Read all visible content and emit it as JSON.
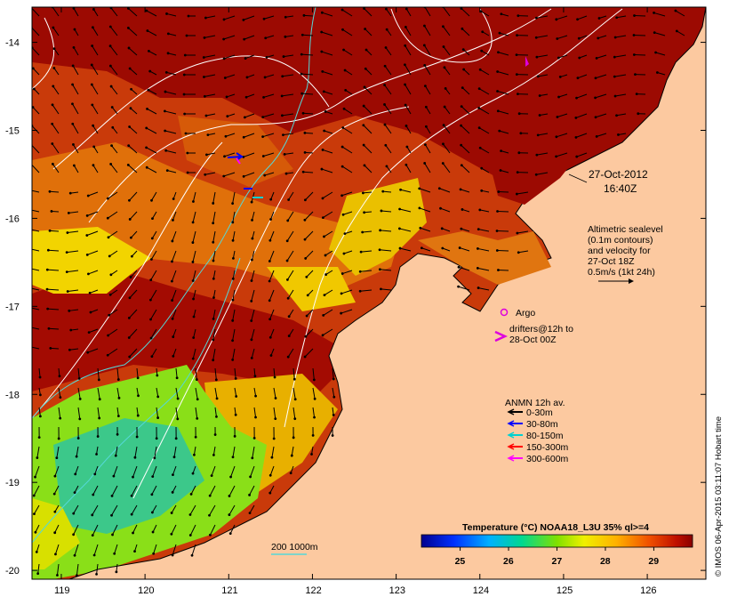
{
  "map": {
    "lat_ticks": [
      "-14",
      "-15",
      "-16",
      "-17",
      "-18",
      "-19",
      "-20"
    ],
    "lon_ticks": [
      "119",
      "120",
      "121",
      "122",
      "123",
      "124",
      "125",
      "126"
    ],
    "lat_range": [
      -20.1,
      -13.6
    ],
    "lon_range": [
      118.65,
      126.7
    ]
  },
  "annotations": {
    "date_line1": "27-Oct-2012",
    "date_line2": "16:40Z",
    "altimetry": [
      "Altimetric sealevel",
      "(0.1m contours)",
      "and velocity for",
      "27-Oct 18Z",
      "0.5m/s (1kt 24h)"
    ],
    "argo_label": "Argo",
    "drifters": [
      "drifters@12h to",
      "28-Oct 00Z"
    ],
    "isobath_label": "200  1000m",
    "credit": "© IMOS 06-Apr-2015 03:11:07 Hobart time"
  },
  "legend": {
    "title": "ANMN 12h av.",
    "items": [
      {
        "label": "0-30m",
        "color": "#000000"
      },
      {
        "label": "30-80m",
        "color": "#0000ff"
      },
      {
        "label": "80-150m",
        "color": "#00d0d0"
      },
      {
        "label": "150-300m",
        "color": "#ff0000"
      },
      {
        "label": "300-600m",
        "color": "#ff00ff"
      }
    ]
  },
  "colorbar": {
    "title": "Temperature (°C) NOAA18_L3U 35% ql>=4",
    "ticks": [
      "25",
      "26",
      "27",
      "28",
      "29"
    ],
    "range": [
      24.2,
      29.8
    ]
  },
  "colors": {
    "land": "#fcc9a0",
    "isobath": "#55d8d8",
    "sealevel_contour": "#ffffff",
    "argo": "#dd00dd"
  }
}
